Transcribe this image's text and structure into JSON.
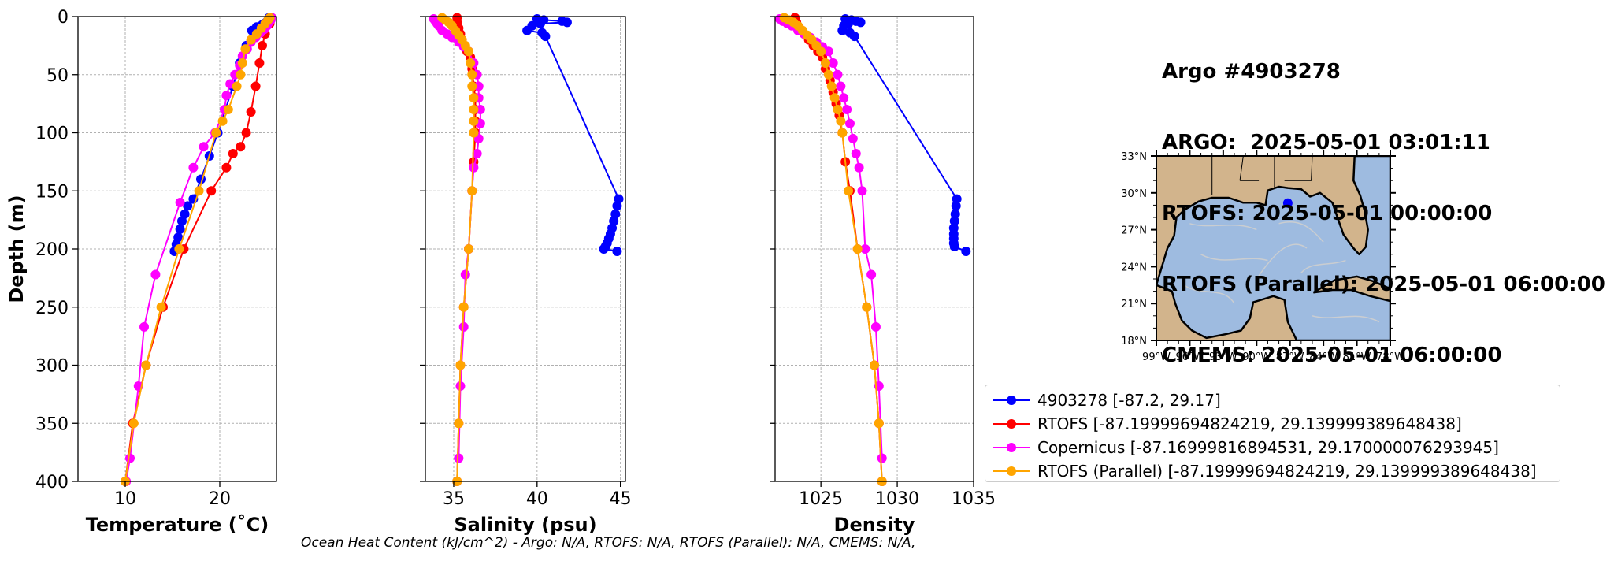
{
  "chart_data": [
    {
      "type": "line",
      "xlabel": "Temperature (˚C)",
      "ylabel": "Depth (m)",
      "xlim": [
        5,
        26
      ],
      "ylim": [
        400,
        0
      ],
      "xticks": [
        10,
        20
      ],
      "yticks": [
        0,
        50,
        100,
        150,
        200,
        250,
        300,
        350,
        400
      ],
      "grid": true,
      "series": [
        {
          "name": "4903278 [-87.2, 29.17]",
          "color": "#0000ff",
          "x": [
            25.2,
            25.1,
            24.9,
            24.5,
            23.9,
            23.4,
            22.8,
            22.1,
            21.4,
            20.6,
            19.8,
            18.9,
            18.0,
            17.2,
            16.6,
            16.3,
            16.0,
            15.8,
            15.6,
            15.4,
            15.2
          ],
          "y": [
            1,
            3,
            5,
            7,
            9,
            12,
            25,
            40,
            60,
            80,
            100,
            120,
            140,
            157,
            163,
            170,
            176,
            183,
            190,
            196,
            202
          ]
        },
        {
          "name": "RTOFS [-87.19999694824219, 29.139999389648438]",
          "color": "#ff0000",
          "x": [
            25.5,
            25.3,
            24.8,
            24.5,
            24.2,
            23.8,
            23.3,
            22.8,
            22.2,
            21.4,
            20.7,
            19.1,
            16.2,
            14.0,
            12.2,
            10.8,
            10.0
          ],
          "y": [
            1,
            6,
            15,
            25,
            40,
            60,
            82,
            100,
            112,
            118,
            130,
            150,
            200,
            250,
            300,
            350,
            400
          ]
        },
        {
          "name": "Copernicus [-87.16999816894531, 29.170000076293945]",
          "color": "#ff00ff",
          "x": [
            25.5,
            25.4,
            25.2,
            25.0,
            24.7,
            24.3,
            23.8,
            23.3,
            22.9,
            22.4,
            22.1,
            21.6,
            21.1,
            20.7,
            20.5,
            19.5,
            18.3,
            17.2,
            15.8,
            13.2,
            12.0,
            11.4,
            10.5,
            10.1
          ],
          "y": [
            1,
            3,
            5,
            8,
            11,
            14,
            18,
            22,
            28,
            34,
            42,
            50,
            58,
            68,
            80,
            100,
            112,
            130,
            160,
            222,
            267,
            318,
            380,
            400
          ]
        },
        {
          "name": "RTOFS (Parallel) [-87.19999694824219, 29.139999389648438]",
          "color": "#ffa500",
          "x": [
            25.3,
            25.1,
            24.8,
            24.4,
            23.9,
            23.3,
            22.7,
            22.4,
            22.2,
            21.8,
            20.9,
            20.3,
            19.6,
            17.8,
            15.7,
            13.8,
            12.2,
            10.9,
            10.0
          ],
          "y": [
            1,
            3,
            6,
            10,
            15,
            20,
            28,
            40,
            50,
            60,
            80,
            90,
            100,
            150,
            200,
            250,
            300,
            350,
            400
          ]
        }
      ]
    },
    {
      "type": "line",
      "xlabel": "Salinity (psu)",
      "ylabel": "",
      "xlim": [
        33.3,
        45.3
      ],
      "ylim": [
        400,
        0
      ],
      "xticks": [
        35,
        40,
        45
      ],
      "yticks": [
        0,
        50,
        100,
        150,
        200,
        250,
        300,
        350,
        400
      ],
      "grid": true,
      "series": [
        {
          "name": "4903278 [-87.2, 29.17]",
          "color": "#0000ff",
          "x": [
            40.0,
            40.4,
            41.5,
            41.8,
            40.2,
            39.7,
            39.4,
            40.3,
            40.5,
            44.9,
            44.8,
            44.7,
            44.6,
            44.5,
            44.4,
            44.3,
            44.2,
            44.1,
            44.0,
            44.8
          ],
          "y": [
            2,
            3,
            4,
            5,
            6,
            8,
            12,
            14,
            17,
            157,
            163,
            170,
            176,
            182,
            187,
            191,
            195,
            198,
            200,
            202
          ]
        },
        {
          "name": "RTOFS [-87.19999694824219, 29.139999389648438]",
          "color": "#ff0000",
          "x": [
            35.2,
            35.2,
            35.3,
            35.4,
            35.5,
            35.6,
            35.8,
            36.0,
            36.1,
            36.2,
            36.3,
            36.3,
            36.3,
            36.3,
            36.2,
            36.1,
            35.9,
            35.6,
            35.4,
            35.3,
            35.2
          ],
          "y": [
            1,
            5,
            10,
            15,
            20,
            25,
            30,
            35,
            45,
            60,
            70,
            80,
            90,
            100,
            125,
            150,
            200,
            250,
            300,
            350,
            400
          ]
        },
        {
          "name": "Copernicus [-87.16999816894531, 29.170000076293945]",
          "color": "#ff00ff",
          "x": [
            33.8,
            33.9,
            34.0,
            34.1,
            34.3,
            34.6,
            34.9,
            35.3,
            35.6,
            35.9,
            36.2,
            36.4,
            36.5,
            36.5,
            36.6,
            36.6,
            36.5,
            36.4,
            36.2,
            36.1,
            35.9,
            35.7,
            35.6,
            35.4,
            35.3
          ],
          "y": [
            2,
            4,
            6,
            8,
            12,
            15,
            18,
            22,
            26,
            30,
            40,
            50,
            60,
            70,
            80,
            92,
            105,
            118,
            130,
            150,
            200,
            222,
            267,
            318,
            380
          ]
        },
        {
          "name": "RTOFS (Parallel) [-87.19999694824219, 29.139999389648438]",
          "color": "#ffa500",
          "x": [
            34.3,
            34.5,
            34.7,
            34.9,
            35.1,
            35.3,
            35.5,
            35.7,
            35.9,
            36.0,
            36.1,
            36.1,
            36.2,
            36.2,
            36.2,
            36.2,
            36.1,
            35.9,
            35.6,
            35.4,
            35.3,
            35.2
          ],
          "y": [
            1,
            3,
            5,
            8,
            12,
            16,
            20,
            25,
            30,
            40,
            50,
            60,
            70,
            80,
            90,
            100,
            150,
            200,
            250,
            300,
            350,
            400
          ]
        }
      ]
    },
    {
      "type": "line",
      "xlabel": "Density",
      "ylabel": "",
      "xlim": [
        1022,
        1035
      ],
      "ylim": [
        400,
        0
      ],
      "xticks": [
        1025,
        1030,
        1035
      ],
      "yticks": [
        0,
        50,
        100,
        150,
        200,
        250,
        300,
        350,
        400
      ],
      "grid": true,
      "series": [
        {
          "name": "4903278 [-87.2, 29.17]",
          "color": "#0000ff",
          "x": [
            1026.6,
            1027.0,
            1027.3,
            1027.6,
            1026.8,
            1026.5,
            1026.4,
            1026.9,
            1027.2,
            1033.9,
            1033.85,
            1033.8,
            1033.75,
            1033.7,
            1033.7,
            1033.7,
            1033.7,
            1033.75,
            1034.5
          ],
          "y": [
            2,
            3,
            4,
            5,
            6,
            8,
            12,
            14,
            17,
            157,
            163,
            170,
            176,
            182,
            187,
            191,
            195,
            198,
            202
          ]
        },
        {
          "name": "RTOFS [-87.19999694824219, 29.139999389648438]",
          "color": "#ff0000",
          "x": [
            1023.3,
            1023.4,
            1023.6,
            1023.9,
            1024.2,
            1024.5,
            1024.8,
            1025.1,
            1025.3,
            1025.6,
            1025.8,
            1026.0,
            1026.2,
            1026.4,
            1026.6,
            1026.9,
            1027.4,
            1028.0,
            1028.5,
            1028.8,
            1029.0
          ],
          "y": [
            1,
            5,
            10,
            15,
            20,
            25,
            30,
            35,
            45,
            55,
            65,
            75,
            85,
            100,
            125,
            150,
            200,
            250,
            300,
            350,
            400
          ]
        },
        {
          "name": "Copernicus [-87.16999816894531, 29.170000076293945]",
          "color": "#ff00ff",
          "x": [
            1022.3,
            1022.5,
            1022.8,
            1023.1,
            1023.5,
            1023.9,
            1024.3,
            1024.7,
            1025.1,
            1025.5,
            1025.8,
            1026.1,
            1026.3,
            1026.5,
            1026.7,
            1026.9,
            1027.1,
            1027.3,
            1027.5,
            1027.7,
            1027.9,
            1028.3,
            1028.6,
            1028.8,
            1029.0
          ],
          "y": [
            2,
            4,
            6,
            8,
            12,
            15,
            18,
            22,
            26,
            30,
            40,
            50,
            60,
            70,
            80,
            92,
            105,
            118,
            130,
            150,
            200,
            222,
            267,
            318,
            380
          ]
        },
        {
          "name": "RTOFS (Parallel) [-87.19999694824219, 29.139999389648438]",
          "color": "#ffa500",
          "x": [
            1022.6,
            1022.9,
            1023.2,
            1023.5,
            1023.8,
            1024.1,
            1024.4,
            1024.7,
            1025.0,
            1025.3,
            1025.5,
            1025.7,
            1025.9,
            1026.1,
            1026.3,
            1026.4,
            1026.8,
            1027.4,
            1028.0,
            1028.5,
            1028.8,
            1029.0
          ],
          "y": [
            1,
            3,
            5,
            8,
            12,
            16,
            20,
            25,
            30,
            40,
            50,
            60,
            70,
            80,
            90,
            100,
            150,
            200,
            250,
            300,
            350,
            400
          ]
        }
      ]
    }
  ],
  "title_lines": [
    "Argo #4903278",
    "ARGO:  2025-05-01 03:01:11",
    "RTOFS: 2025-05-01 00:00:00",
    "RTOFS (Parallel): 2025-05-01 06:00:00",
    "CMEMS: 2025-05-01 06:00:00"
  ],
  "map": {
    "lon_ticks": [
      "99°W",
      "96°W",
      "93°W",
      "90°W",
      "87°W",
      "84°W",
      "81°W",
      "78°W"
    ],
    "lat_ticks": [
      "33°N",
      "30°N",
      "27°N",
      "24°N",
      "21°N",
      "18°N"
    ],
    "lon_range": [
      -99,
      -78
    ],
    "lat_range": [
      18,
      33
    ],
    "float_position": {
      "lon": -87.2,
      "lat": 29.17
    },
    "ocean_color": "#9ebbe0",
    "land_color": "#d2b48c",
    "marker_color": "#0000ff"
  },
  "legend": {
    "placement": "lower-right",
    "entries": [
      {
        "label": "4903278 [-87.2, 29.17]",
        "color": "#0000ff"
      },
      {
        "label": "RTOFS [-87.19999694824219, 29.139999389648438]",
        "color": "#ff0000"
      },
      {
        "label": "Copernicus [-87.16999816894531, 29.170000076293945]",
        "color": "#ff00ff"
      },
      {
        "label": "RTOFS (Parallel) [-87.19999694824219, 29.139999389648438]",
        "color": "#ffa500"
      }
    ]
  },
  "footer": "Ocean Heat Content (kJ/cm^2) - Argo: N/A,  RTOFS: N/A,  RTOFS (Parallel): N/A,  CMEMS: N/A,"
}
